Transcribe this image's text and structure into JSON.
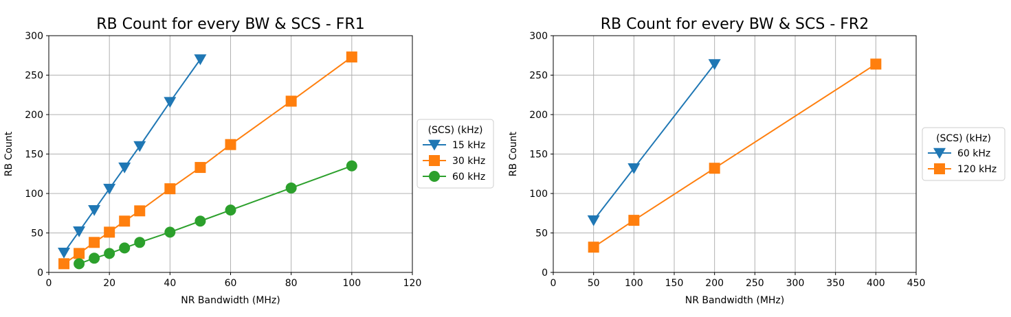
{
  "chart_data": [
    {
      "type": "line",
      "title": "RB Count for every BW & SCS - FR1",
      "xlabel": "NR Bandwidth (MHz)",
      "ylabel": "RB Count",
      "xlim": [
        0,
        120
      ],
      "ylim": [
        0,
        300
      ],
      "xticks": [
        0,
        20,
        40,
        60,
        80,
        100,
        120
      ],
      "yticks": [
        0,
        50,
        100,
        150,
        200,
        250,
        300
      ],
      "xtick_labels": [
        "0",
        "20",
        "40",
        "60",
        "80",
        "100",
        "120"
      ],
      "ytick_labels": [
        "0",
        "50",
        "100",
        "150",
        "200",
        "250",
        "300"
      ],
      "grid": true,
      "legend": {
        "title": "(SCS) (kHz)",
        "placement": "outside-right"
      },
      "series": [
        {
          "name": "15 kHz",
          "color": "#1f77b4",
          "marker": "triangle-down",
          "x": [
            5,
            10,
            15,
            20,
            25,
            30,
            40,
            50
          ],
          "y": [
            25,
            52,
            79,
            106,
            133,
            160,
            216,
            270
          ]
        },
        {
          "name": "30 kHz",
          "color": "#ff7f0e",
          "marker": "square",
          "x": [
            5,
            10,
            15,
            20,
            25,
            30,
            40,
            50,
            60,
            80,
            100
          ],
          "y": [
            11,
            24,
            38,
            51,
            65,
            78,
            106,
            133,
            162,
            217,
            273
          ]
        },
        {
          "name": "60 kHz",
          "color": "#2ca02c",
          "marker": "circle",
          "x": [
            10,
            15,
            20,
            25,
            30,
            40,
            50,
            60,
            80,
            100
          ],
          "y": [
            11,
            18,
            24,
            31,
            38,
            51,
            65,
            79,
            107,
            135
          ]
        }
      ]
    },
    {
      "type": "line",
      "title": "RB Count for every BW & SCS - FR2",
      "xlabel": "NR Bandwidth (MHz)",
      "ylabel": "RB Count",
      "xlim": [
        0,
        450
      ],
      "ylim": [
        0,
        300
      ],
      "xticks": [
        0,
        50,
        100,
        150,
        200,
        250,
        300,
        350,
        400,
        450
      ],
      "yticks": [
        0,
        50,
        100,
        150,
        200,
        250,
        300
      ],
      "xtick_labels": [
        "0",
        "50",
        "100",
        "150",
        "200",
        "250",
        "300",
        "350",
        "400",
        "450"
      ],
      "ytick_labels": [
        "0",
        "50",
        "100",
        "150",
        "200",
        "250",
        "300"
      ],
      "grid": true,
      "legend": {
        "title": "(SCS) (kHz)",
        "placement": "outside-right"
      },
      "series": [
        {
          "name": "60 kHz",
          "color": "#1f77b4",
          "marker": "triangle-down",
          "x": [
            50,
            100,
            200
          ],
          "y": [
            66,
            132,
            264
          ]
        },
        {
          "name": "120 kHz",
          "color": "#ff7f0e",
          "marker": "square",
          "x": [
            50,
            100,
            200,
            400
          ],
          "y": [
            32,
            66,
            132,
            264
          ]
        }
      ]
    }
  ]
}
